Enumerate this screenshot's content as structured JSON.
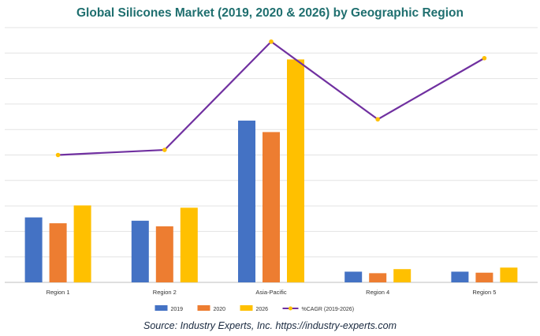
{
  "chart_data": {
    "type": "bar",
    "title": "Global Silicones Market (2019, 2020 & 2026) by Geographic Region",
    "categories": [
      "Region 1",
      "Region 2",
      "Asia-Pacific",
      "Region 4",
      "Region 5"
    ],
    "series": [
      {
        "name": "2019",
        "type": "bar",
        "color": "#4472c4",
        "values": [
          2.55,
          2.42,
          6.35,
          0.42,
          0.42
        ]
      },
      {
        "name": "2020",
        "type": "bar",
        "color": "#ed7d31",
        "values": [
          2.32,
          2.2,
          5.9,
          0.36,
          0.38
        ]
      },
      {
        "name": "2026",
        "type": "bar",
        "color": "#ffc000",
        "values": [
          3.02,
          2.93,
          8.75,
          0.52,
          0.58
        ]
      },
      {
        "name": "%CAGR (2019-2026)",
        "type": "line",
        "color": "#7030a0",
        "values": [
          5.0,
          5.2,
          9.45,
          6.4,
          8.8
        ]
      }
    ],
    "ylim": [
      0,
      10
    ],
    "grid": true,
    "legend_position": "bottom",
    "xlabel": "",
    "ylabel": ""
  },
  "source": "Source: Industry Experts, Inc. https://industry-experts.com"
}
